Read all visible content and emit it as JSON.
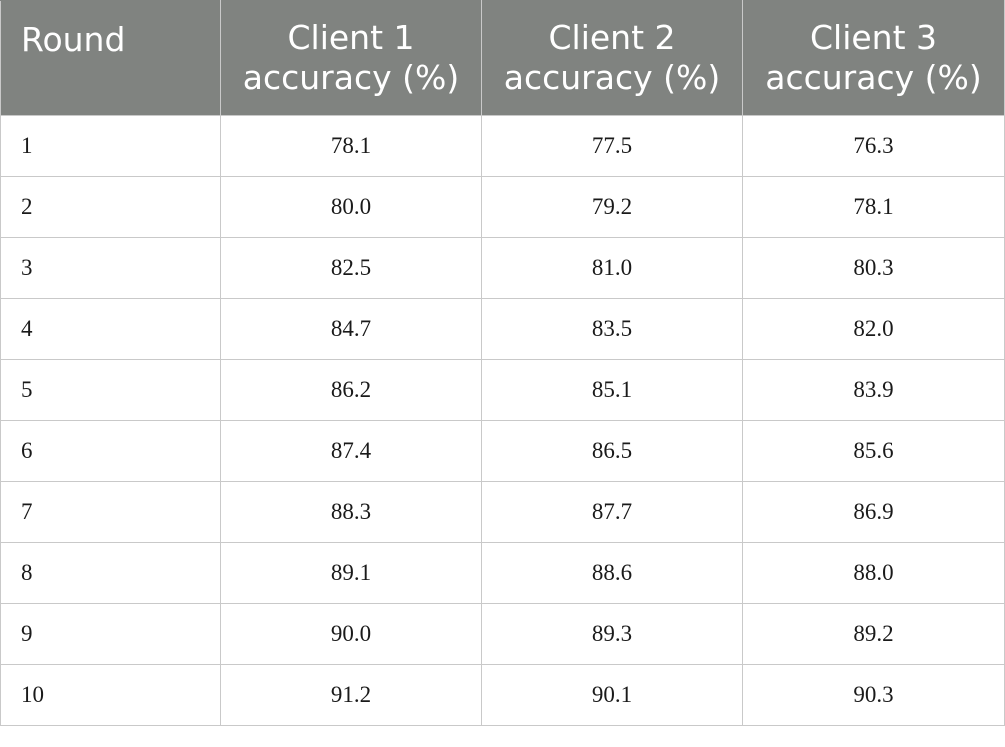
{
  "table": {
    "headers": [
      {
        "line1": "Round",
        "line2": ""
      },
      {
        "line1": "Client 1",
        "line2": "accuracy (%)"
      },
      {
        "line1": "Client 2",
        "line2": "accuracy (%)"
      },
      {
        "line1": "Client 3",
        "line2": "accuracy (%)"
      }
    ],
    "rows": [
      {
        "round": "1",
        "c1": "78.1",
        "c2": "77.5",
        "c3": "76.3"
      },
      {
        "round": "2",
        "c1": "80.0",
        "c2": "79.2",
        "c3": "78.1"
      },
      {
        "round": "3",
        "c1": "82.5",
        "c2": "81.0",
        "c3": "80.3"
      },
      {
        "round": "4",
        "c1": "84.7",
        "c2": "83.5",
        "c3": "82.0"
      },
      {
        "round": "5",
        "c1": "86.2",
        "c2": "85.1",
        "c3": "83.9"
      },
      {
        "round": "6",
        "c1": "87.4",
        "c2": "86.5",
        "c3": "85.6"
      },
      {
        "round": "7",
        "c1": "88.3",
        "c2": "87.7",
        "c3": "86.9"
      },
      {
        "round": "8",
        "c1": "89.1",
        "c2": "88.6",
        "c3": "88.0"
      },
      {
        "round": "9",
        "c1": "90.0",
        "c2": "89.3",
        "c3": "89.2"
      },
      {
        "round": "10",
        "c1": "91.2",
        "c2": "90.1",
        "c3": "90.3"
      }
    ]
  },
  "colors": {
    "header_bg": "#808380",
    "header_text": "#ffffff",
    "grid": "#c9c9c9"
  }
}
